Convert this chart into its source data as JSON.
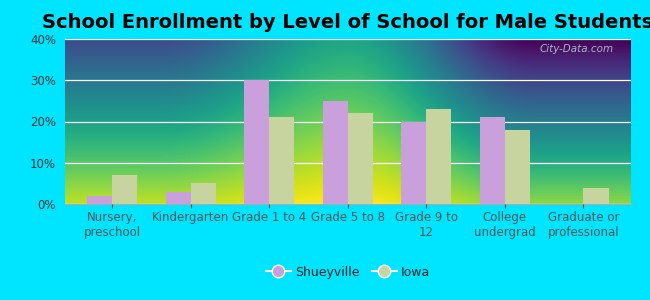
{
  "title": "School Enrollment by Level of School for Male Students",
  "categories": [
    "Nursery,\npreschool",
    "Kindergarten",
    "Grade 1 to 4",
    "Grade 5 to 8",
    "Grade 9 to\n12",
    "College\nundergrad",
    "Graduate or\nprofessional"
  ],
  "shueyville": [
    2,
    3,
    30,
    25,
    20,
    21,
    0
  ],
  "iowa": [
    7,
    5,
    21,
    22,
    23,
    18,
    4
  ],
  "shueyville_color": "#c9a0dc",
  "iowa_color": "#c8d4a0",
  "background_color": "#00e5ff",
  "plot_bg_top": "#e8f0e0",
  "plot_bg_bottom": "#f5f8f0",
  "ylim": [
    0,
    40
  ],
  "yticks": [
    0,
    10,
    20,
    30,
    40
  ],
  "bar_width": 0.32,
  "legend_labels": [
    "Shueyville",
    "Iowa"
  ],
  "title_fontsize": 14,
  "tick_fontsize": 8.5,
  "legend_fontsize": 9
}
